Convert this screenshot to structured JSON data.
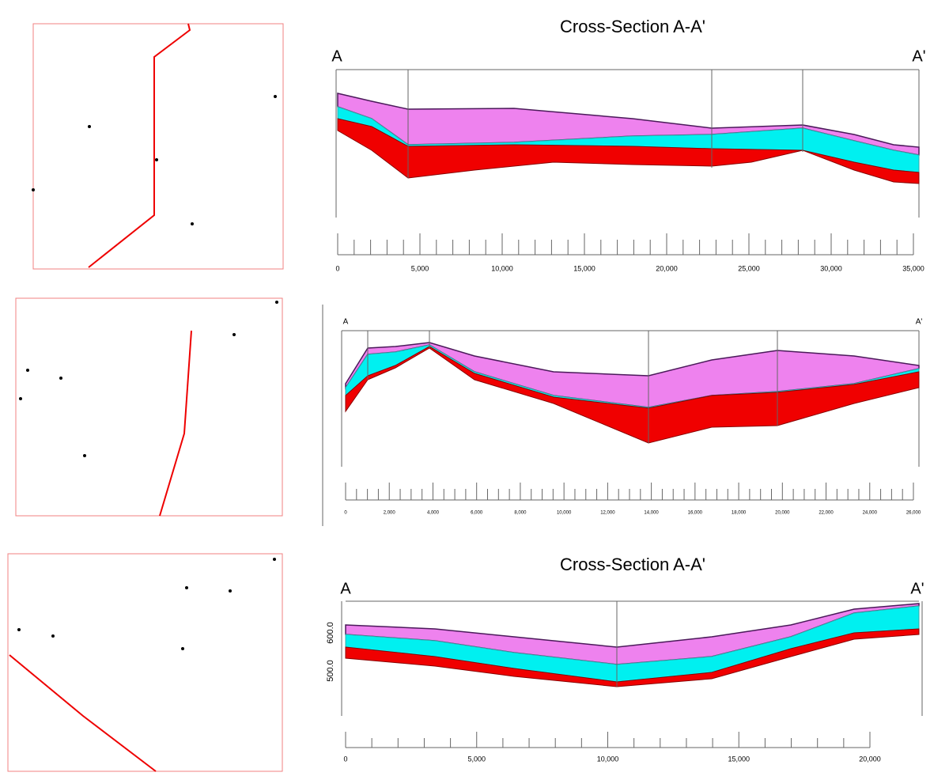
{
  "panels": [
    {
      "title": "Cross-Section A-A'",
      "start": "A",
      "end": "A'",
      "x_labels": [
        "0",
        "5,000",
        "10,000",
        "15,000",
        "20,000",
        "25,000",
        "30,000",
        "35,000"
      ]
    },
    {
      "start": "A",
      "end": "A'",
      "x_labels": [
        "0",
        "2,000",
        "4,000",
        "6,000",
        "8,000",
        "10,000",
        "12,000",
        "14,000",
        "16,000",
        "18,000",
        "20,000",
        "22,000",
        "24,000",
        "26,000"
      ]
    },
    {
      "title": "Cross-Section A-A'",
      "start": "A",
      "end": "A'",
      "x_labels": [
        "0",
        "5,000",
        "10,000",
        "15,000",
        "20,000"
      ],
      "y_labels": [
        "600.0",
        "500.0"
      ]
    }
  ]
}
